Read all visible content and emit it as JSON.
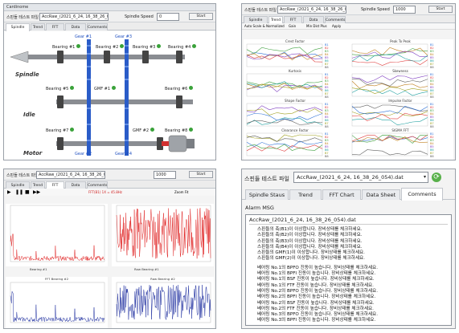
{
  "panel1": {
    "window_title": "Cardinome",
    "file_label": "스핀들 테스트 파일",
    "file_value": "AccRaw_(2021_6_24, 16_38_26_054).dat",
    "speed_label": "Spindle Speed",
    "speed_value": "0",
    "start_label": "Start",
    "tabs": [
      "Spindle Staus",
      "Trend",
      "FFT Chart",
      "Data Sheet",
      "Comments"
    ],
    "gear_labels": [
      "Gear #1",
      "Gear #2",
      "Gear #3",
      "Gear #4"
    ],
    "bearings": [
      "Bearing #1",
      "Bearing #2",
      "Bearing #3",
      "Bearing #4",
      "Bearing #5",
      "GMF #1",
      "Bearing #6",
      "Bearing #7",
      "GMF #2",
      "Bearing #8"
    ],
    "spindle_label": "Spindle",
    "idle_label": "Idle",
    "motor_label": "Motor"
  },
  "panel2": {
    "file_label": "스핀들 테스트 파일",
    "file_value": "AccRaw_(2021_6_24, 16_38_26_054).dat",
    "speed_label": "Spindle Speed",
    "speed_value": "1000",
    "start_label": "Start",
    "tabs": [
      "Spindle Staus",
      "Trend",
      "FFT Chart",
      "Data Sheet",
      "Comments"
    ],
    "sub_tabs": [
      "Auto Scale & Normalized",
      "Gain",
      "Min Dist Plus",
      "Apply"
    ],
    "chart_titles": [
      "Crest Factor",
      "Peak To Peak",
      "Kurtosis",
      "Skewness",
      "Shape Factor",
      "Impulse Factor",
      "Clearance Factor",
      "SIGMA FFT"
    ],
    "legend": [
      "B1",
      "B2",
      "B3",
      "B4",
      "B5",
      "B6",
      "B7",
      "B8"
    ]
  },
  "panel3": {
    "window_title": "스핀들 테스트 파일",
    "file_value": "AccRaw_(2021_6_24, 16_38_26_054).dat",
    "speed_value": "1000",
    "start_label": "Start",
    "tabs": [
      "Spindle Staus",
      "Trend",
      "FFT Chart",
      "Data Sheet",
      "Comments"
    ],
    "red_status": "FFT(B1) 1X = 45.8Hz",
    "zoom_label": "Zoom Fit",
    "legend_top_left": "Bearing #1",
    "legend_top_right": "Raw Bearing #1",
    "legend_bottom_left": "FFT Bearing #2",
    "legend_bottom_right": "Raw Bearing #2"
  },
  "panel4": {
    "file_label": "스핀들 테스트 파일",
    "file_value": "AccRaw_(2021_6_24, 16_38_26_054).dat",
    "tabs": [
      "Spindle Staus",
      "Trend",
      "FFT Chart",
      "Data Sheet",
      "Comments"
    ],
    "alarm_label": "Alarm MSG",
    "alarm_file": "AccRaw_(2021_6_24, 16_38_26_054).dat",
    "messages_a": [
      "스핀들의 축(B1)이 이상합니다. 장비상태를 체크하세요.",
      "스핀들의 축(B2)이 이상합니다. 장비상태를 체크하세요.",
      "스핀들의 축(B3)이 이상합니다. 장비상태를 체크하세요.",
      "스핀들의 축(B4)이 이상합니다. 장비상태를 체크하세요.",
      "스핀들의 GMF(1)이 이상합니다. 장비상태를 체크하세요.",
      "스핀들의 GMF(2)이 이상합니다. 장비상태를 체크하세요."
    ],
    "messages_b": [
      "베어링 No.1의 BPFO 진동이 높습니다. 장비상태를 체크하세요.",
      "베어링 No.1의 BPFI 진동이 높습니다. 장비상태를 체크하세요.",
      "베어링 No.1의 BSF 진동이 높습니다. 장비상태를 체크하세요.",
      "베어링 No.1의 FTF 진동이 높습니다. 장비상태를 체크하세요.",
      "베어링 No.2의 BPFO 진동이 높습니다. 장비상태를 체크하세요.",
      "베어링 No.2의 BPFI 진동이 높습니다. 장비상태를 체크하세요.",
      "베어링 No.2의 BSF 진동이 높습니다. 장비상태를 체크하세요.",
      "베어링 No.2의 FTF 진동이 높습니다. 장비상태를 체크하세요.",
      "베어링 No.3의 BPFO 진동이 높습니다. 장비상태를 체크하세요.",
      "베어링 No.3의 BPFI 진동이 높습니다. 장비상태를 체크하세요."
    ]
  },
  "colors": {
    "accent_blue": "#2050c0",
    "fft_red": "#e02020",
    "fft_blue": "#2030a0",
    "status_green": "#3aa23a"
  }
}
